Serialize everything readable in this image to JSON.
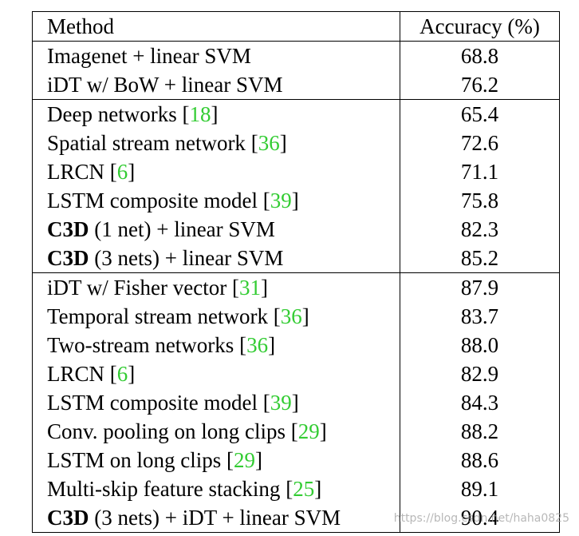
{
  "header": {
    "method": "Method",
    "accuracy": "Accuracy (%)"
  },
  "rows": [
    {
      "group": 0,
      "bold_prefix": "",
      "method": "Imagenet + linear SVM",
      "cite": "",
      "suffix": "",
      "accuracy": "68.8",
      "acc_bold": false
    },
    {
      "group": 0,
      "bold_prefix": "",
      "method": "iDT w/ BoW + linear SVM",
      "cite": "",
      "suffix": "",
      "accuracy": "76.2",
      "acc_bold": false
    },
    {
      "group": 1,
      "bold_prefix": "",
      "method": "Deep networks ",
      "cite": "18",
      "suffix": "",
      "accuracy": "65.4",
      "acc_bold": false
    },
    {
      "group": 1,
      "bold_prefix": "",
      "method": "Spatial stream network ",
      "cite": "36",
      "suffix": "",
      "accuracy": "72.6",
      "acc_bold": false
    },
    {
      "group": 1,
      "bold_prefix": "",
      "method": "LRCN ",
      "cite": "6",
      "suffix": "",
      "accuracy": "71.1",
      "acc_bold": false
    },
    {
      "group": 1,
      "bold_prefix": "",
      "method": "LSTM composite model ",
      "cite": "39",
      "suffix": "",
      "accuracy": "75.8",
      "acc_bold": false
    },
    {
      "group": 1,
      "bold_prefix": "C3D",
      "method": " (1 net) + linear SVM",
      "cite": "",
      "suffix": "",
      "accuracy": "82.3",
      "acc_bold": false
    },
    {
      "group": 1,
      "bold_prefix": "C3D",
      "method": " (3 nets) + linear SVM",
      "cite": "",
      "suffix": "",
      "accuracy": "85.2",
      "acc_bold": true
    },
    {
      "group": 2,
      "bold_prefix": "",
      "method": "iDT w/ Fisher vector ",
      "cite": "31",
      "suffix": "",
      "accuracy": "87.9",
      "acc_bold": false
    },
    {
      "group": 2,
      "bold_prefix": "",
      "method": "Temporal stream network ",
      "cite": "36",
      "suffix": "",
      "accuracy": "83.7",
      "acc_bold": false
    },
    {
      "group": 2,
      "bold_prefix": "",
      "method": "Two-stream networks ",
      "cite": "36",
      "suffix": "",
      "accuracy": "88.0",
      "acc_bold": false
    },
    {
      "group": 2,
      "bold_prefix": "",
      "method": "LRCN ",
      "cite": "6",
      "suffix": "",
      "accuracy": "82.9",
      "acc_bold": false
    },
    {
      "group": 2,
      "bold_prefix": "",
      "method": "LSTM composite model ",
      "cite": "39",
      "suffix": "",
      "accuracy": "84.3",
      "acc_bold": false
    },
    {
      "group": 2,
      "bold_prefix": "",
      "method": "Conv. pooling on long clips ",
      "cite": "29",
      "suffix": "",
      "accuracy": "88.2",
      "acc_bold": false
    },
    {
      "group": 2,
      "bold_prefix": "",
      "method": "LSTM on long clips ",
      "cite": "29",
      "suffix": "",
      "accuracy": "88.6",
      "acc_bold": false
    },
    {
      "group": 2,
      "bold_prefix": "",
      "method": "Multi-skip feature stacking ",
      "cite": "25",
      "suffix": "",
      "accuracy": "89.1",
      "acc_bold": false
    },
    {
      "group": 2,
      "bold_prefix": "C3D",
      "method": " (3 nets) + iDT + linear SVM",
      "cite": "",
      "suffix": "",
      "accuracy": "90.4",
      "acc_bold": true
    }
  ],
  "watermark": "https://blog.csdn.net/haha0825",
  "colors": {
    "citation": "#33cc33",
    "rule": "#000000"
  }
}
